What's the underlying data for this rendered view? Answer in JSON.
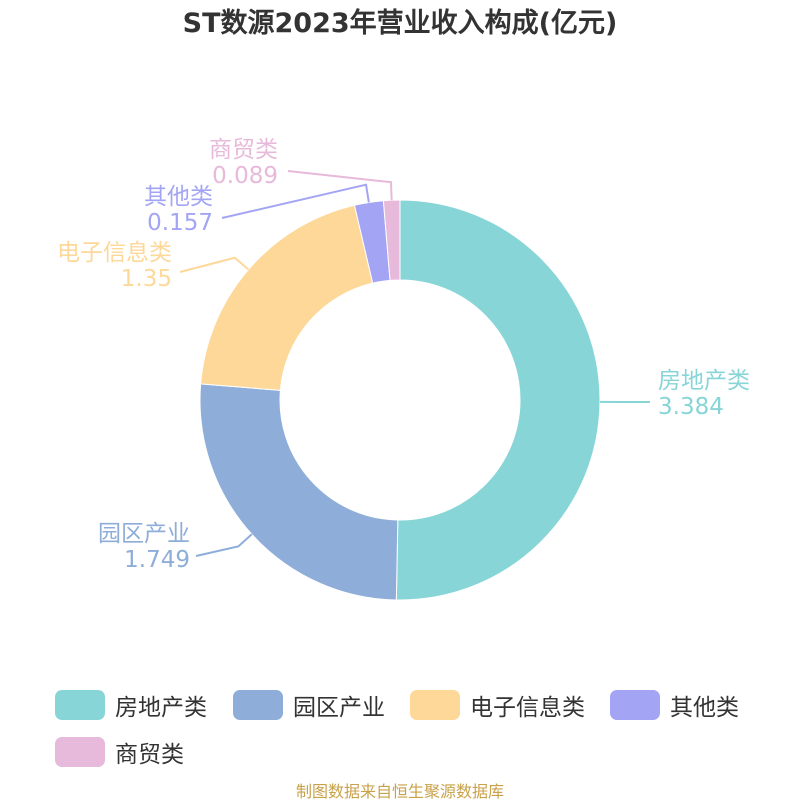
{
  "title": "ST数源2023年营业收入构成(亿元)",
  "source_note": "制图数据来自恒生聚源数据库",
  "colors": {
    "房地产类": "#88d5d8",
    "园区产业": "#8eadd9",
    "电子信息类": "#fed899",
    "其他类": "#a3a5f4",
    "商贸类": "#e7b9da"
  },
  "chart_data": {
    "type": "pie",
    "variant": "donut",
    "title": "ST数源2023年营业收入构成(亿元)",
    "unit": "亿元",
    "categories": [
      "房地产类",
      "园区产业",
      "电子信息类",
      "其他类",
      "商贸类"
    ],
    "values": [
      3.384,
      1.749,
      1.35,
      0.157,
      0.089
    ],
    "value_labels": [
      "3.384",
      "1.749",
      "1.35",
      "0.157",
      "0.089"
    ],
    "start_angle_deg": 90,
    "direction": "clockwise",
    "legend_position": "bottom"
  }
}
